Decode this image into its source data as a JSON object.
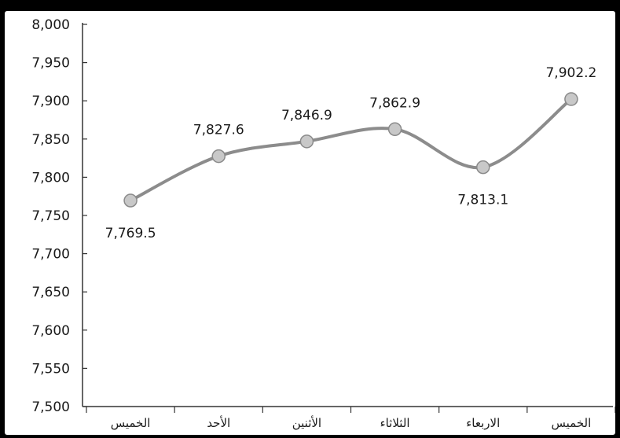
{
  "chart_data": {
    "type": "line",
    "title": "",
    "xlabel": "",
    "ylabel": "",
    "categories": [
      "الخميس",
      "الأحد",
      "الأثنين",
      "الثلاثاء",
      "الاربعاء",
      "الخميس"
    ],
    "series": [
      {
        "values": [
          7769.5,
          7827.6,
          7846.9,
          7862.9,
          7813.1,
          7902.2
        ]
      }
    ],
    "data_labels": [
      "7,769.5",
      "7,827.6",
      "7,846.9",
      "7,862.9",
      "7,813.1",
      "7,902.2"
    ],
    "ylim": [
      7500,
      8000
    ],
    "y_ticks": [
      7500,
      7550,
      7600,
      7650,
      7700,
      7750,
      7800,
      7850,
      7900,
      7950,
      8000
    ],
    "y_tick_labels": [
      "7,500",
      "7,550",
      "7,600",
      "7,650",
      "7,700",
      "7,750",
      "7,800",
      "7,850",
      "7,900",
      "7,950",
      "8,000"
    ],
    "grid": false,
    "legend": "none",
    "colors": {
      "line": "#8c8c8c",
      "marker_fill": "#c8c8c8",
      "marker_stroke": "#8a8a8a",
      "axis": "#333333"
    }
  }
}
